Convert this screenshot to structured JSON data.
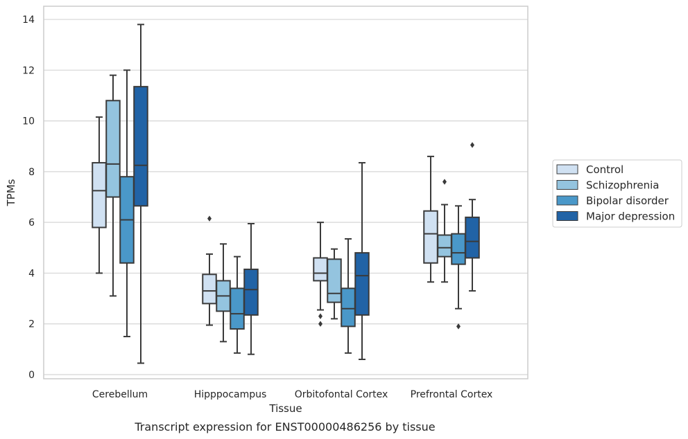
{
  "chart_data": {
    "type": "box",
    "title": "",
    "xlabel": "Tissue",
    "ylabel": "TPMs",
    "caption": "Transcript expression for ENST00000486256 by tissue",
    "ylim": [
      -0.2,
      14.5
    ],
    "yticks": [
      0,
      2,
      4,
      6,
      8,
      10,
      12,
      14
    ],
    "categories": [
      "Cerebellum",
      "Hipppocampus",
      "Orbitofontal Cortex",
      "Prefrontal Cortex"
    ],
    "grid": "horizontal",
    "legend_position": "right",
    "colors": [
      "#d0e1f2",
      "#94c4df",
      "#4a98c9",
      "#2163a6"
    ],
    "series": [
      {
        "name": "Control",
        "boxes": [
          {
            "whislo": 4.0,
            "q1": 5.8,
            "med": 7.25,
            "q3": 8.35,
            "whishi": 10.15,
            "fliers": []
          },
          {
            "whislo": 1.95,
            "q1": 2.8,
            "med": 3.3,
            "q3": 3.95,
            "whishi": 4.75,
            "fliers": [
              6.15
            ]
          },
          {
            "whislo": 2.55,
            "q1": 3.7,
            "med": 4.0,
            "q3": 4.6,
            "whishi": 6.0,
            "fliers": [
              2.3,
              2.0
            ]
          },
          {
            "whislo": 3.65,
            "q1": 4.4,
            "med": 5.55,
            "q3": 6.45,
            "whishi": 8.6,
            "fliers": []
          }
        ]
      },
      {
        "name": "Schizophrenia",
        "boxes": [
          {
            "whislo": 3.1,
            "q1": 7.0,
            "med": 8.3,
            "q3": 10.8,
            "whishi": 11.8,
            "fliers": []
          },
          {
            "whislo": 1.3,
            "q1": 2.5,
            "med": 3.1,
            "q3": 3.7,
            "whishi": 5.15,
            "fliers": []
          },
          {
            "whislo": 2.2,
            "q1": 2.85,
            "med": 3.2,
            "q3": 4.55,
            "whishi": 4.95,
            "fliers": []
          },
          {
            "whislo": 3.65,
            "q1": 4.65,
            "med": 5.0,
            "q3": 5.5,
            "whishi": 6.7,
            "fliers": [
              7.6
            ]
          }
        ]
      },
      {
        "name": "Bipolar disorder",
        "boxes": [
          {
            "whislo": 1.5,
            "q1": 4.4,
            "med": 6.1,
            "q3": 7.8,
            "whishi": 12.0,
            "fliers": []
          },
          {
            "whislo": 0.85,
            "q1": 1.8,
            "med": 2.4,
            "q3": 3.4,
            "whishi": 4.65,
            "fliers": []
          },
          {
            "whislo": 0.85,
            "q1": 1.9,
            "med": 2.6,
            "q3": 3.4,
            "whishi": 5.35,
            "fliers": []
          },
          {
            "whislo": 2.6,
            "q1": 4.35,
            "med": 4.8,
            "q3": 5.55,
            "whishi": 6.65,
            "fliers": [
              1.9
            ]
          }
        ]
      },
      {
        "name": "Major depression",
        "boxes": [
          {
            "whislo": 0.45,
            "q1": 6.65,
            "med": 8.25,
            "q3": 11.35,
            "whishi": 13.8,
            "fliers": []
          },
          {
            "whislo": 0.8,
            "q1": 2.35,
            "med": 3.35,
            "q3": 4.15,
            "whishi": 5.95,
            "fliers": []
          },
          {
            "whislo": 0.6,
            "q1": 2.35,
            "med": 3.9,
            "q3": 4.8,
            "whishi": 8.35,
            "fliers": []
          },
          {
            "whislo": 3.3,
            "q1": 4.6,
            "med": 5.25,
            "q3": 6.2,
            "whishi": 6.9,
            "fliers": [
              9.05
            ]
          }
        ]
      }
    ]
  }
}
